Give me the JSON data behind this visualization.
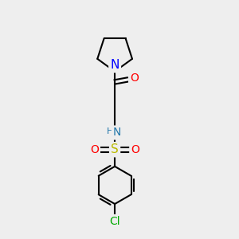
{
  "bg_color": "#eeeeee",
  "bond_color": "#000000",
  "bond_width": 1.5,
  "atom_colors": {
    "N_pyrrolidine": "#0000ff",
    "N_sulfonamide": "#2277aa",
    "H_sulfonamide": "#2277aa",
    "O_carbonyl": "#ff0000",
    "O_sulfonyl1": "#ff0000",
    "O_sulfonyl2": "#ff0000",
    "S": "#bbbb00",
    "Cl": "#00aa00",
    "C": "#000000"
  },
  "font_size": 9,
  "fig_size": [
    3.0,
    3.0
  ],
  "dpi": 100,
  "xlim": [
    0,
    10
  ],
  "ylim": [
    0,
    10
  ]
}
